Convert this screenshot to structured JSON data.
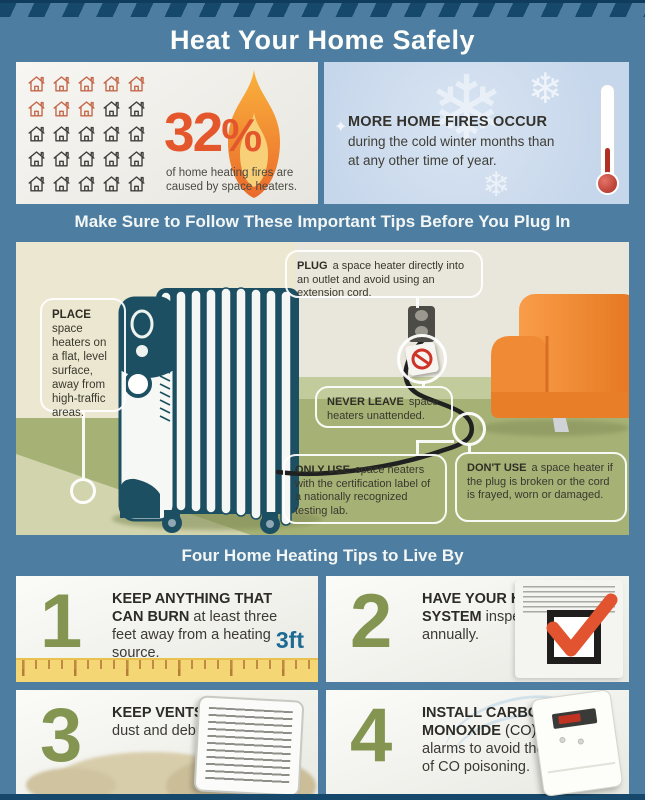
{
  "poster": {
    "title": "Heat Your Home Safely"
  },
  "stat_left": {
    "percent": "32",
    "percent_symbol": "%",
    "caption": "of home heating fires are caused by space heaters.",
    "houses_total": 25,
    "houses_highlighted": 8
  },
  "stat_right": {
    "bold": "MORE HOME FIRES OCCUR",
    "line1": "during the cold winter months than",
    "line2": "at any other time of year."
  },
  "section_headers": {
    "plug_in": "Make Sure to Follow These Important Tips Before You Plug In",
    "four_tips": "Four Home Heating Tips to Live By"
  },
  "callouts": {
    "place": {
      "lead": "PLACE",
      "text": "space heaters on a flat, level surface, away from high-traffic areas."
    },
    "plug": {
      "lead": "PLUG",
      "text": "a space heater directly into an outlet and avoid using an extension cord."
    },
    "never_leave": {
      "lead": "NEVER LEAVE",
      "text": "space heaters unattended."
    },
    "only_use": {
      "lead": "ONLY USE",
      "text": "space heaters with the certification label of a nationally recognized testing lab."
    },
    "dont_use": {
      "lead": "DON'T USE",
      "text": "a space heater if the plug is broken or the cord is frayed, worn or damaged."
    }
  },
  "tips": [
    {
      "number": "1",
      "lead": "KEEP ANYTHING THAT CAN BURN",
      "text": "at least three feet away from a heating source.",
      "label": "3ft"
    },
    {
      "number": "2",
      "lead": "HAVE YOUR HEATING SYSTEM",
      "text": "inspected annually."
    },
    {
      "number": "3",
      "lead": "KEEP VENTS CLEAR",
      "text": "of dust and debris."
    },
    {
      "number": "4",
      "lead": "INSTALL CARBON MONOXIDE",
      "lead_suffix": "(CO)",
      "text": "alarms to avoid the risk of CO poisoning."
    }
  ],
  "colors": {
    "frame_blue": "#4d7ea1",
    "stripe_navy": "#16486b",
    "flame_orange": "#e8622d",
    "house_orange": "#c4674a",
    "house_dark": "#403f3b",
    "snow_panel": "#c7d7eb",
    "number_green": "#839551",
    "ruler_yellow": "#f5d674",
    "check_red": "#e2532f",
    "couch_orange": "#ef8532",
    "label_blue": "#1d6a94",
    "heater_blue": "#1d4f63",
    "wall_cream": "#ece7d0",
    "floor_green": "#a6b175"
  }
}
